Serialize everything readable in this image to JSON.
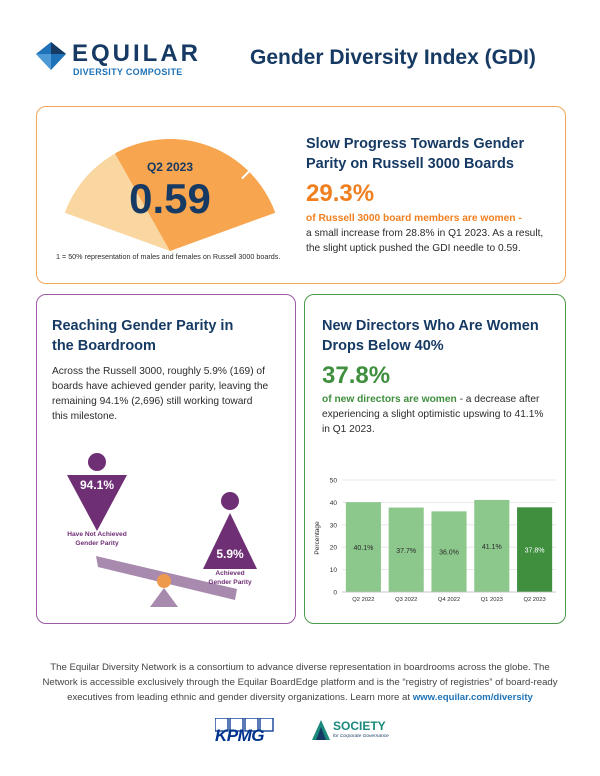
{
  "header": {
    "logo_word": "EQUILAR",
    "logo_sub": "DIVERSITY COMPOSITE",
    "title": "Gender Diversity Index  (GDI)"
  },
  "gauge": {
    "period": "Q2 2023",
    "value": "0.59",
    "value_number": 0.59,
    "footnote": "1 = 50% representation of males and females on Russell 3000 boards."
  },
  "top_card": {
    "heading_line1": "Slow Progress Towards Gender",
    "heading_line2": "Parity on Russell 3000 Boards",
    "stat": "29.3%",
    "stat_label": "of Russell 3000 board members are women",
    "dash": " -",
    "body_line1": "a small increase from 28.8% in Q1 2023. As a result,",
    "body_line2": "the slight uptick pushed the GDI needle to 0.59."
  },
  "parity_card": {
    "heading_line1": "Reaching Gender Parity in",
    "heading_line2": "the Boardroom",
    "body_lines": [
      "Across the Russell 3000, roughly 5.9% (169) of",
      "boards have achieved gender parity, leaving the",
      "remaining 94.1% (2,696) still working toward",
      "this milestone."
    ],
    "not_achieved_pct": "94.1%",
    "not_achieved_label_1": "Have Not Achieved",
    "not_achieved_label_2": "Gender Parity",
    "achieved_pct": "5.9%",
    "achieved_label_1": "Achieved",
    "achieved_label_2": "Gender Parity"
  },
  "directors_card": {
    "heading_line1": "New Directors Who Are Women",
    "heading_line2": "Drops Below 40%",
    "stat": "37.8%",
    "stat_label": "of new directors are women",
    "body_part1": " - a decrease after",
    "body_line2": "experiencing a slight optimistic upswing to 41.1%",
    "body_line3": "in Q1 2023."
  },
  "chart_data": {
    "type": "bar",
    "categories": [
      "Q2 2022",
      "Q3 2022",
      "Q4 2022",
      "Q1 2023",
      "Q2 2023"
    ],
    "values": [
      40.1,
      37.7,
      36.0,
      41.1,
      37.8
    ],
    "labels": [
      "40.1%",
      "37.7%",
      "36.0%",
      "41.1%",
      "37.8%"
    ],
    "ylabel": "Percentage",
    "ylim": [
      0,
      50
    ],
    "yticks": [
      0,
      10,
      20,
      30,
      40,
      50
    ],
    "colors": {
      "default": "#8cc78c",
      "highlight": "#3f8f3f"
    },
    "grid": true
  },
  "footer": {
    "line1": "The Equilar Diversity Network is a consortium to advance diverse representation in boardrooms across the globe. The",
    "line2": "Network is accessible exclusively through the Equilar BoardEdge platform and is the “registry of registries” of board-ready",
    "line3": "executives from leading ethnic and gender diversity organizations. Learn more at ",
    "link": "www.equilar.com/diversity"
  },
  "partners": {
    "kpmg": "KPMG",
    "society": "SOCIETY",
    "society_sub": "for Corporate Governance"
  },
  "colors": {
    "navy": "#163a63",
    "orange": "#f07f1f",
    "gauge_light": "#fad6a1",
    "gauge_dark": "#f7a54f",
    "purple": "#6e2f75",
    "green": "#3f8f3f"
  }
}
